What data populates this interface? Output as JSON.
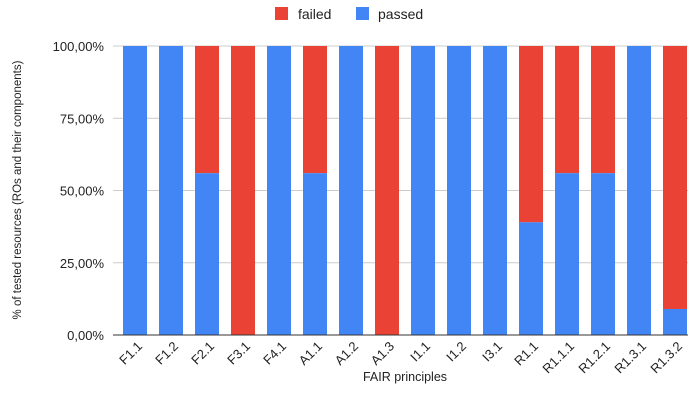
{
  "chart_data": {
    "type": "bar",
    "stacked": true,
    "percent_stacked": true,
    "title": "",
    "xlabel": "FAIR principles",
    "ylabel": "% of tested resources (ROs and their components)",
    "ylim": [
      0,
      100
    ],
    "yticks": [
      "0,00%",
      "25,00%",
      "50,00%",
      "75,00%",
      "100,00%"
    ],
    "ytick_values": [
      0,
      25,
      50,
      75,
      100
    ],
    "grid": true,
    "legend": "top-center",
    "categories": [
      "F1.1",
      "F1.2",
      "F2.1",
      "F3.1",
      "F4.1",
      "A1.1",
      "A1.2",
      "A1.3",
      "I1.1",
      "I1.2",
      "I3.1",
      "R1.1",
      "R1.1.1",
      "R1.2.1",
      "R1.3.1",
      "R1.3.2"
    ],
    "series": [
      {
        "name": "passed",
        "color": "#4285f4",
        "values": [
          100,
          100,
          56,
          0,
          100,
          56,
          100,
          0,
          100,
          100,
          100,
          39,
          56,
          56,
          100,
          9
        ]
      },
      {
        "name": "failed",
        "color": "#ea4335",
        "values": [
          0,
          0,
          44,
          100,
          0,
          44,
          0,
          100,
          0,
          0,
          0,
          61,
          44,
          44,
          0,
          91
        ]
      }
    ],
    "legend_entries": [
      "failed",
      "passed"
    ]
  }
}
